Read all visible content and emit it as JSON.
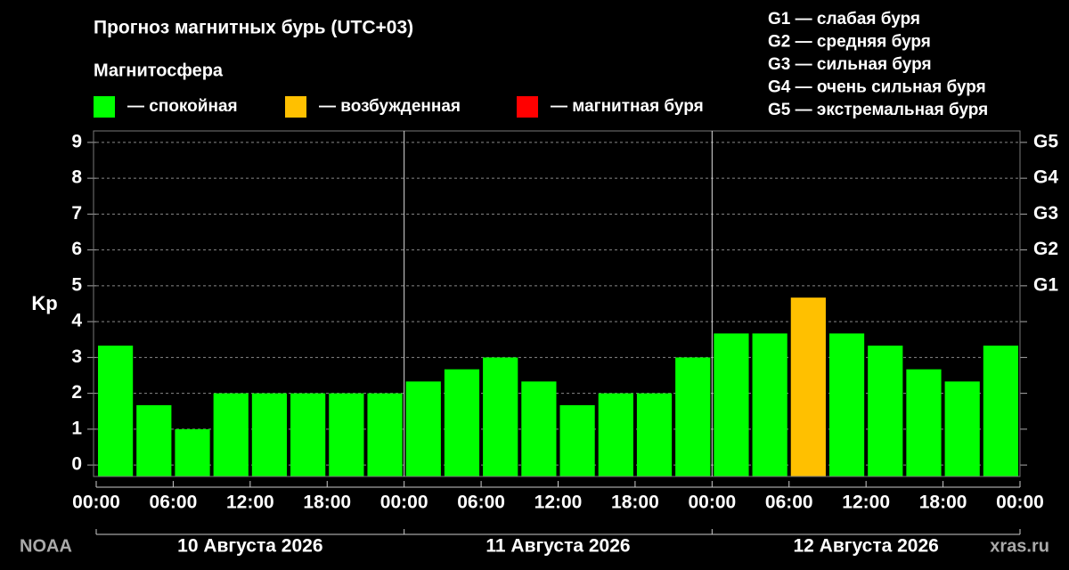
{
  "chart_data": {
    "type": "bar",
    "title": "Прогноз магнитных бурь (UTC+03)",
    "legend_title": "Магнитосфера",
    "legend": [
      {
        "name": "— спокойная",
        "color": "#00ff00"
      },
      {
        "name": "— возбужденная",
        "color": "#ffc000"
      },
      {
        "name": "— магнитная буря",
        "color": "#ff0000"
      }
    ],
    "g_scale": [
      "G1 — слабая буря",
      "G2 — средняя буря",
      "G3 — сильная буря",
      "G4 — очень сильная буря",
      "G5 — экстремальная буря"
    ],
    "ylabel": "Kp",
    "values": [
      3.33,
      1.67,
      1.0,
      2.0,
      2.0,
      2.0,
      2.0,
      2.0,
      2.33,
      2.67,
      3.0,
      2.33,
      1.67,
      2.0,
      2.0,
      3.0,
      3.67,
      3.67,
      4.67,
      3.67,
      3.33,
      2.67,
      2.33,
      3.33
    ],
    "colors": [
      "#00ff00",
      "#00ff00",
      "#00ff00",
      "#00ff00",
      "#00ff00",
      "#00ff00",
      "#00ff00",
      "#00ff00",
      "#00ff00",
      "#00ff00",
      "#00ff00",
      "#00ff00",
      "#00ff00",
      "#00ff00",
      "#00ff00",
      "#00ff00",
      "#00ff00",
      "#00ff00",
      "#ffc000",
      "#00ff00",
      "#00ff00",
      "#00ff00",
      "#00ff00",
      "#00ff00"
    ],
    "ylim": [
      -0.32,
      9.32
    ],
    "yticks": [
      0,
      1,
      2,
      3,
      4,
      5,
      6,
      7,
      8,
      9
    ],
    "y2ticks": [
      {
        "value": 5,
        "label": "G1"
      },
      {
        "value": 6,
        "label": "G2"
      },
      {
        "value": 7,
        "label": "G3"
      },
      {
        "value": 8,
        "label": "G4"
      },
      {
        "value": 9,
        "label": "G5"
      }
    ],
    "xlim": [
      0,
      72
    ],
    "xticks": [
      {
        "value": 0,
        "label": "00:00"
      },
      {
        "value": 6,
        "label": "06:00"
      },
      {
        "value": 12,
        "label": "12:00"
      },
      {
        "value": 18,
        "label": "18:00"
      },
      {
        "value": 24,
        "label": "00:00"
      },
      {
        "value": 30,
        "label": "06:00"
      },
      {
        "value": 36,
        "label": "12:00"
      },
      {
        "value": 42,
        "label": "18:00"
      },
      {
        "value": 48,
        "label": "00:00"
      },
      {
        "value": 54,
        "label": "06:00"
      },
      {
        "value": 60,
        "label": "12:00"
      },
      {
        "value": 66,
        "label": "18:00"
      },
      {
        "value": 72,
        "label": "00:00"
      }
    ],
    "days": [
      "10 Августа 2026",
      "11 Августа 2026",
      "12 Августа 2026"
    ],
    "source": "NOAA",
    "site": "xras.ru",
    "grid": true
  }
}
